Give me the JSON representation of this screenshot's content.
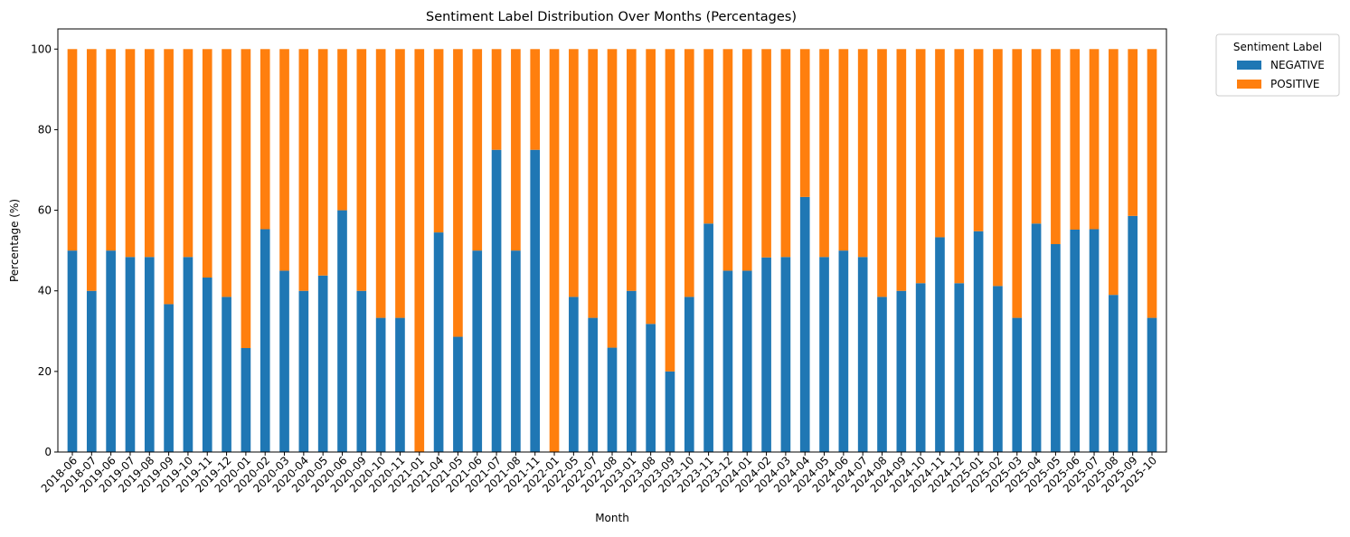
{
  "chart_data": {
    "type": "bar",
    "stacked": true,
    "title": "Sentiment Label Distribution Over Months (Percentages)",
    "xlabel": "Month",
    "ylabel": "Percentage (%)",
    "ylim": [
      0,
      105
    ],
    "yticks": [
      "0",
      "20",
      "40",
      "60",
      "80",
      "100"
    ],
    "grid": false,
    "legend": {
      "title": "Sentiment Label",
      "placement": "outside-top-right"
    },
    "categories": [
      "2018-06",
      "2018-07",
      "2019-06",
      "2019-07",
      "2019-08",
      "2019-09",
      "2019-10",
      "2019-11",
      "2019-12",
      "2020-01",
      "2020-02",
      "2020-03",
      "2020-04",
      "2020-05",
      "2020-06",
      "2020-09",
      "2020-10",
      "2020-11",
      "2021-01",
      "2021-04",
      "2021-05",
      "2021-06",
      "2021-07",
      "2021-08",
      "2021-11",
      "2022-01",
      "2022-05",
      "2022-07",
      "2022-08",
      "2023-01",
      "2023-08",
      "2023-09",
      "2023-10",
      "2023-11",
      "2023-12",
      "2024-01",
      "2024-02",
      "2024-03",
      "2024-04",
      "2024-05",
      "2024-06",
      "2024-07",
      "2024-08",
      "2024-09",
      "2024-10",
      "2024-11",
      "2024-12",
      "2025-01",
      "2025-02",
      "2025-03",
      "2025-04",
      "2025-05",
      "2025-06",
      "2025-07",
      "2025-08",
      "2025-09",
      "2025-10"
    ],
    "series": [
      {
        "name": "NEGATIVE",
        "color": "#1f77b4",
        "values": [
          50,
          40,
          50,
          48.4,
          48.4,
          36.7,
          48.4,
          43.3,
          38.5,
          25.8,
          55.3,
          45,
          40,
          43.8,
          60,
          40,
          33.3,
          33.3,
          0,
          54.5,
          28.6,
          50,
          75,
          50,
          75,
          0,
          38.5,
          33.3,
          25.9,
          40,
          31.8,
          20,
          38.5,
          56.7,
          45,
          45,
          48.3,
          48.4,
          63.3,
          48.4,
          50,
          48.4,
          38.5,
          40,
          41.9,
          53.3,
          41.9,
          54.8,
          41.2,
          33.3,
          56.7,
          51.6,
          55.2,
          55.3,
          39,
          58.6,
          33.3
        ]
      },
      {
        "name": "POSITIVE",
        "color": "#ff7f0e",
        "values": [
          50,
          60,
          50,
          51.6,
          51.6,
          63.3,
          51.6,
          56.7,
          61.5,
          74.2,
          44.7,
          55,
          60,
          56.2,
          40,
          60,
          66.7,
          66.7,
          100,
          45.5,
          71.4,
          50,
          25,
          50,
          25,
          100,
          61.5,
          66.7,
          74.1,
          60,
          68.2,
          80,
          61.5,
          43.3,
          55,
          55,
          51.7,
          51.6,
          36.7,
          51.6,
          50,
          51.6,
          61.5,
          60,
          58.1,
          46.7,
          58.1,
          45.2,
          58.8,
          66.7,
          43.3,
          48.4,
          44.8,
          44.7,
          61,
          41.4,
          66.7
        ]
      }
    ]
  }
}
